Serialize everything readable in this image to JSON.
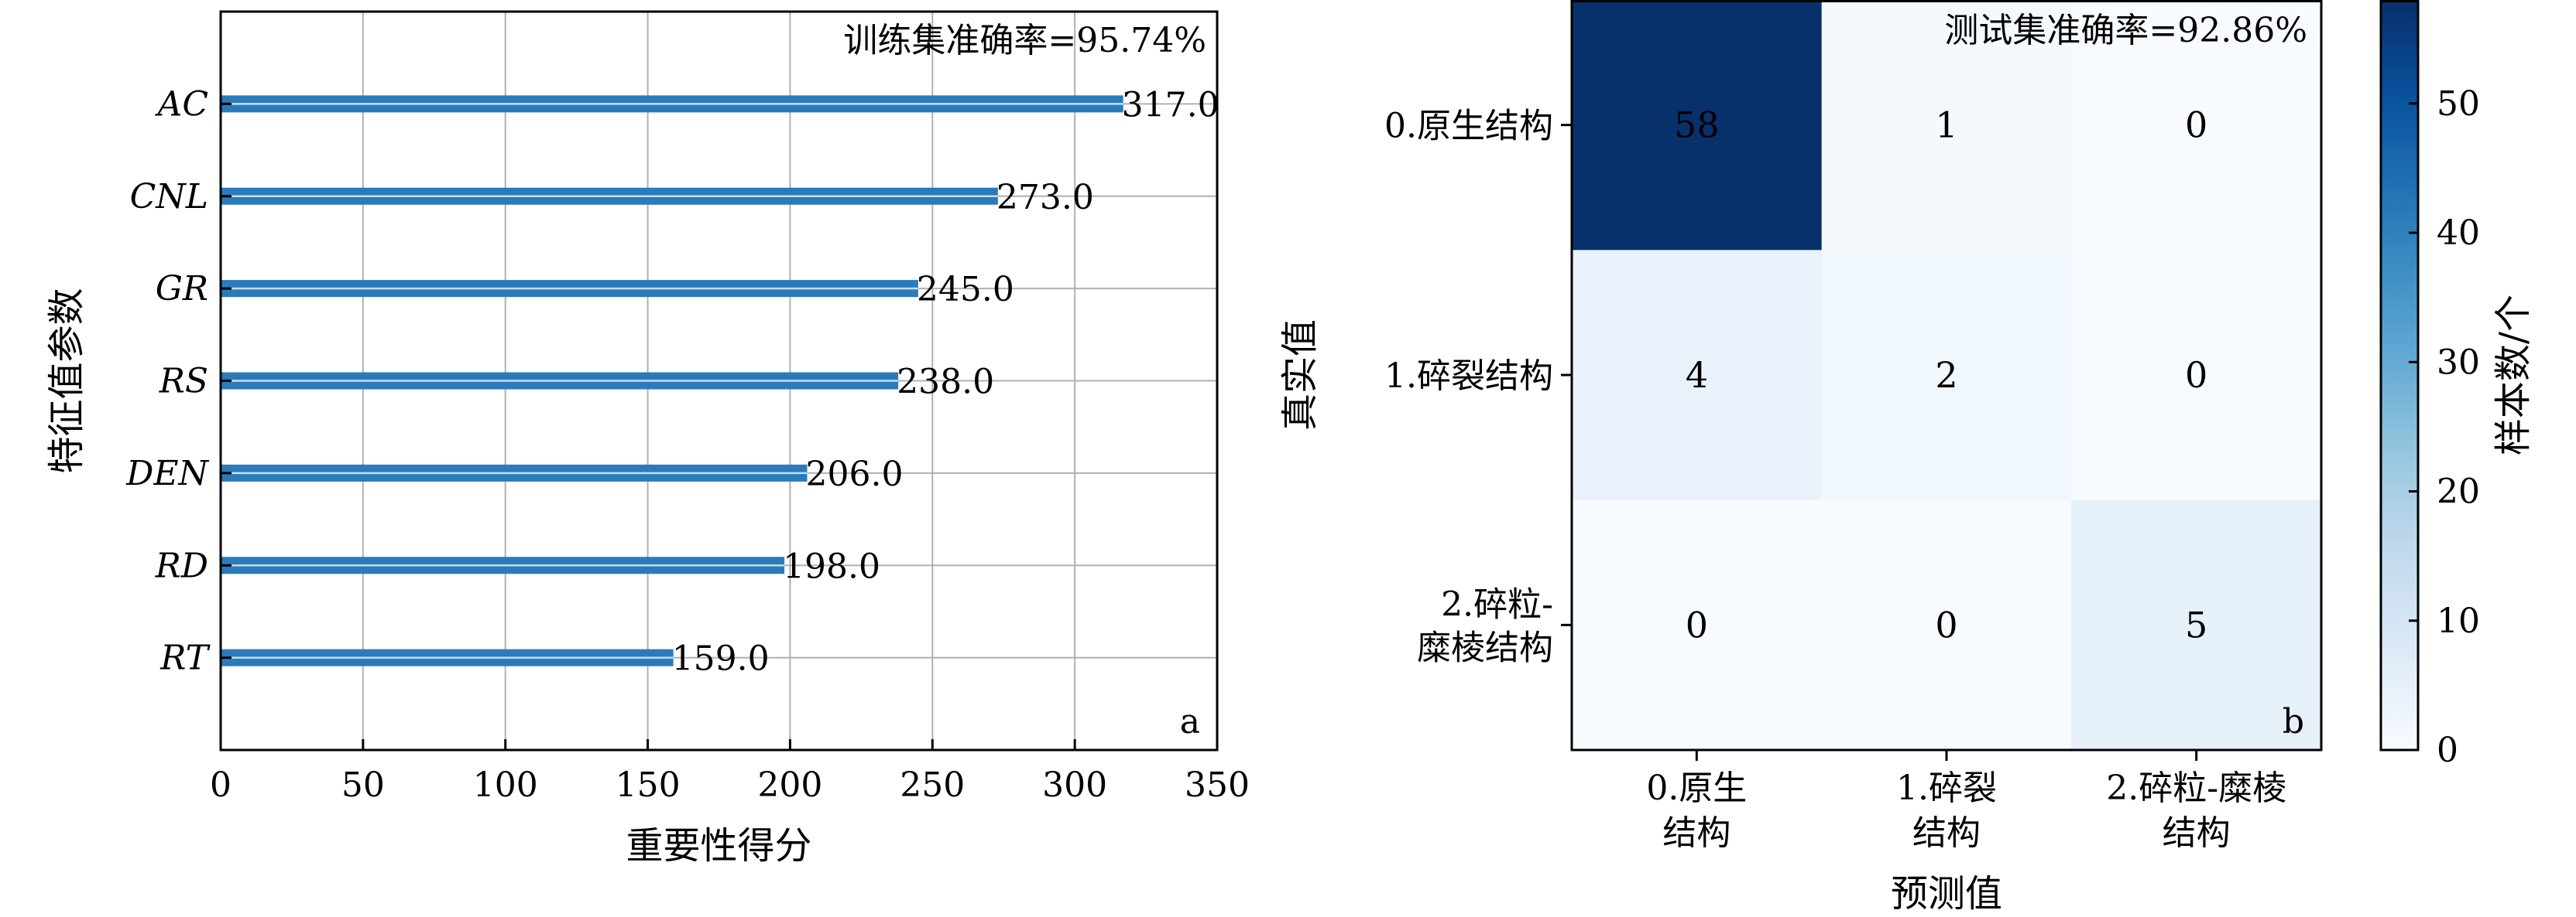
{
  "chart_data": [
    {
      "type": "bar",
      "orientation": "horizontal",
      "panel_letter": "a",
      "annotation": "训练集准确率=95.74%",
      "categories": [
        "AC",
        "CNL",
        "GR",
        "RS",
        "DEN",
        "RD",
        "RT"
      ],
      "values": [
        317.0,
        273.0,
        245.0,
        238.0,
        206.0,
        198.0,
        159.0
      ],
      "value_labels": [
        "317.0",
        "273.0",
        "245.0",
        "238.0",
        "206.0",
        "198.0",
        "159.0"
      ],
      "xlabel": "重要性得分",
      "ylabel": "特征值参数",
      "xlim": [
        0,
        350
      ],
      "xticks": [
        0,
        50,
        100,
        150,
        200,
        250,
        300,
        350
      ],
      "grid": true,
      "bar_color": "#2b7bba"
    },
    {
      "type": "heatmap",
      "panel_letter": "b",
      "annotation": "测试集准确率=92.86%",
      "row_labels": [
        [
          "0.原生结构"
        ],
        [
          "1.碎裂结构"
        ],
        [
          "2.碎粒-",
          "糜棱结构"
        ]
      ],
      "col_labels": [
        [
          "0.原生",
          "结构"
        ],
        [
          "1.碎裂",
          "结构"
        ],
        [
          "2.碎粒-糜棱",
          "结构"
        ]
      ],
      "matrix": [
        [
          58,
          1,
          0
        ],
        [
          4,
          2,
          0
        ],
        [
          0,
          0,
          5
        ]
      ],
      "xlabel": "预测值",
      "ylabel": "真实值",
      "colorbar": {
        "label": "样本数/个",
        "range": [
          0,
          58
        ],
        "ticks": [
          0,
          10,
          20,
          30,
          40,
          50
        ],
        "colormap": "Blues"
      }
    }
  ]
}
